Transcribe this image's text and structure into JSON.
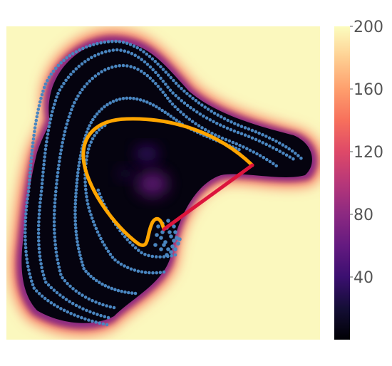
{
  "chart_data": {
    "type": "heatmap",
    "title": "",
    "xlabel": "",
    "ylabel": "",
    "colormap": "magma",
    "colorbar": {
      "range": [
        0,
        200
      ],
      "ticks": [
        {
          "value": 200,
          "label": "200"
        },
        {
          "value": 160,
          "label": "160"
        },
        {
          "value": 120,
          "label": "120"
        },
        {
          "value": 80,
          "label": "80"
        },
        {
          "value": 40,
          "label": "40"
        }
      ]
    },
    "heatmap_description": {
      "outside_value": 200,
      "inside_value": 5,
      "hotspot_value": 45
    },
    "overlays": {
      "scatter_color": "#4a86c0",
      "path_color": "#ffa500",
      "segment_color": "#dc143c"
    }
  }
}
